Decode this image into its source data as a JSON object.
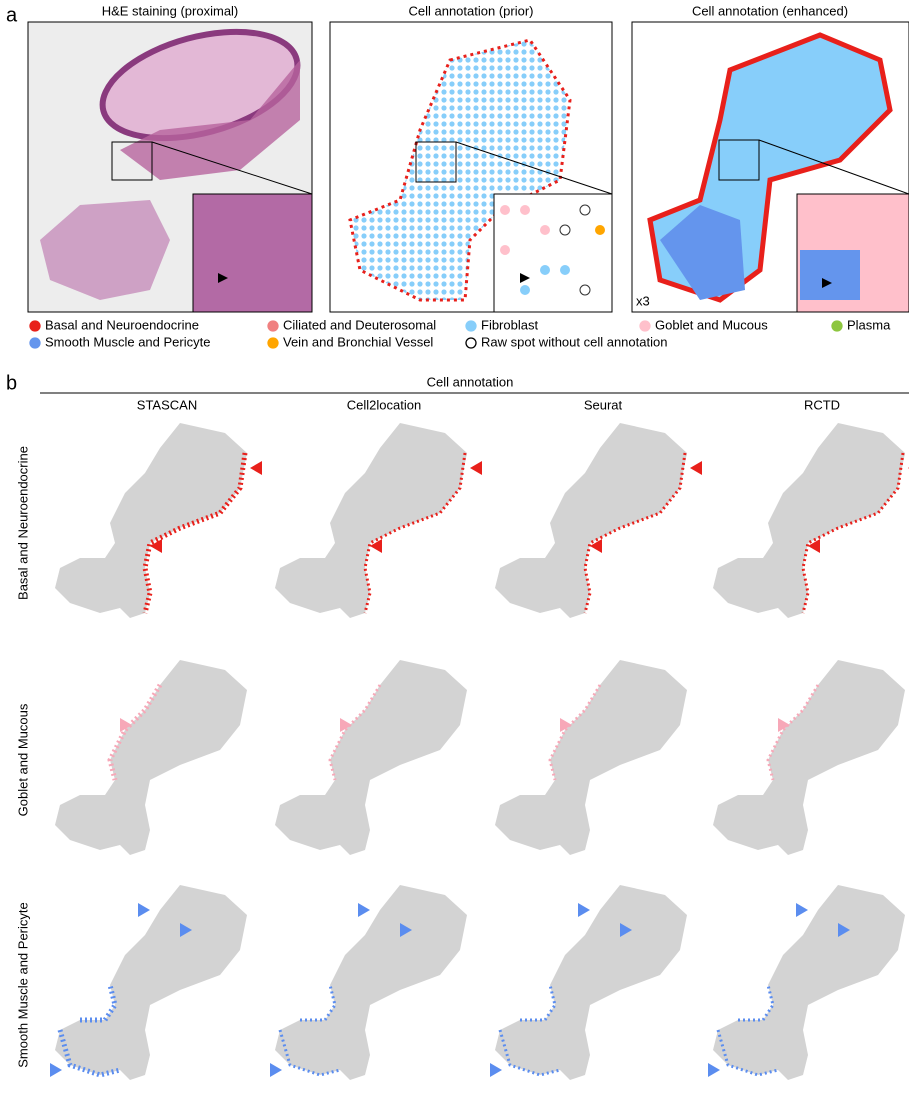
{
  "panel_a": {
    "label": "a",
    "titles": [
      "H&E staining (proximal)",
      "Cell annotation (prior)",
      "Cell annotation (enhanced)"
    ],
    "zoom_label": "x3",
    "legend": [
      {
        "label": "Basal and Neuroendocrine",
        "color": "#e8201b"
      },
      {
        "label": "Ciliated and Deuterosomal",
        "color": "#f08080"
      },
      {
        "label": "Fibroblast",
        "color": "#87cefa"
      },
      {
        "label": "Goblet and Mucous",
        "color": "#ffc0cb"
      },
      {
        "label": "Plasma",
        "color": "#8dc63f"
      },
      {
        "label": "Smooth Muscle and Pericyte",
        "color": "#6495ed"
      },
      {
        "label": "Vein and Bronchial Vessel",
        "color": "#ffa500"
      },
      {
        "label": "Raw spot without cell annotation",
        "color": "#ffffff"
      }
    ]
  },
  "panel_b": {
    "label": "b",
    "header": "Cell annotation",
    "methods": [
      "STASCAN",
      "Cell2location",
      "Seurat",
      "RCTD"
    ],
    "rows": [
      {
        "label": "Basal and Neuroendocrine",
        "color": "#e8201b"
      },
      {
        "label": "Goblet and Mucous",
        "color": "#f7a8b8"
      },
      {
        "label": "Smooth Muscle and Pericyte",
        "color": "#5b8def"
      }
    ]
  }
}
